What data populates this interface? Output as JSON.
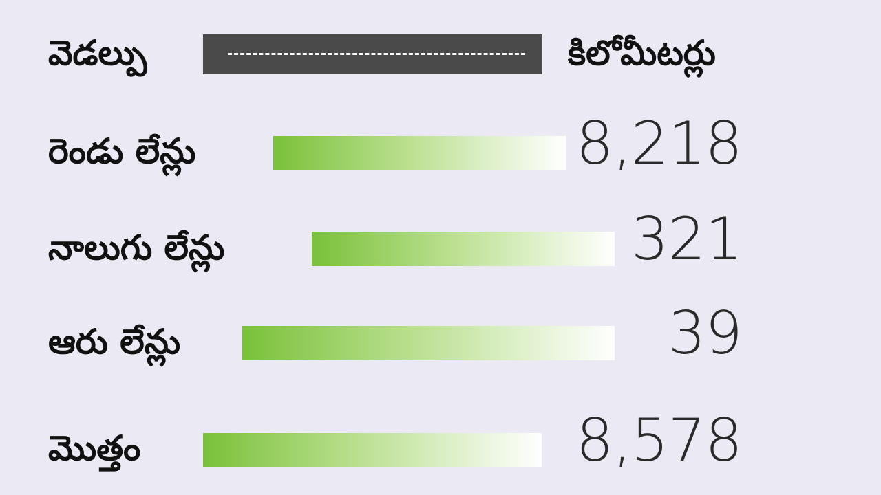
{
  "header": {
    "left_label": "వెడల్పు",
    "right_label": "కిలోమీటర్లు"
  },
  "rows": [
    {
      "label": "రెండు లేన్లు",
      "value": "8,218"
    },
    {
      "label": "నాలుగు లేన్లు",
      "value": "321"
    },
    {
      "label": "ఆరు లేన్లు",
      "value": "39"
    },
    {
      "label": "మొత్తం",
      "value": "8,578"
    }
  ]
}
